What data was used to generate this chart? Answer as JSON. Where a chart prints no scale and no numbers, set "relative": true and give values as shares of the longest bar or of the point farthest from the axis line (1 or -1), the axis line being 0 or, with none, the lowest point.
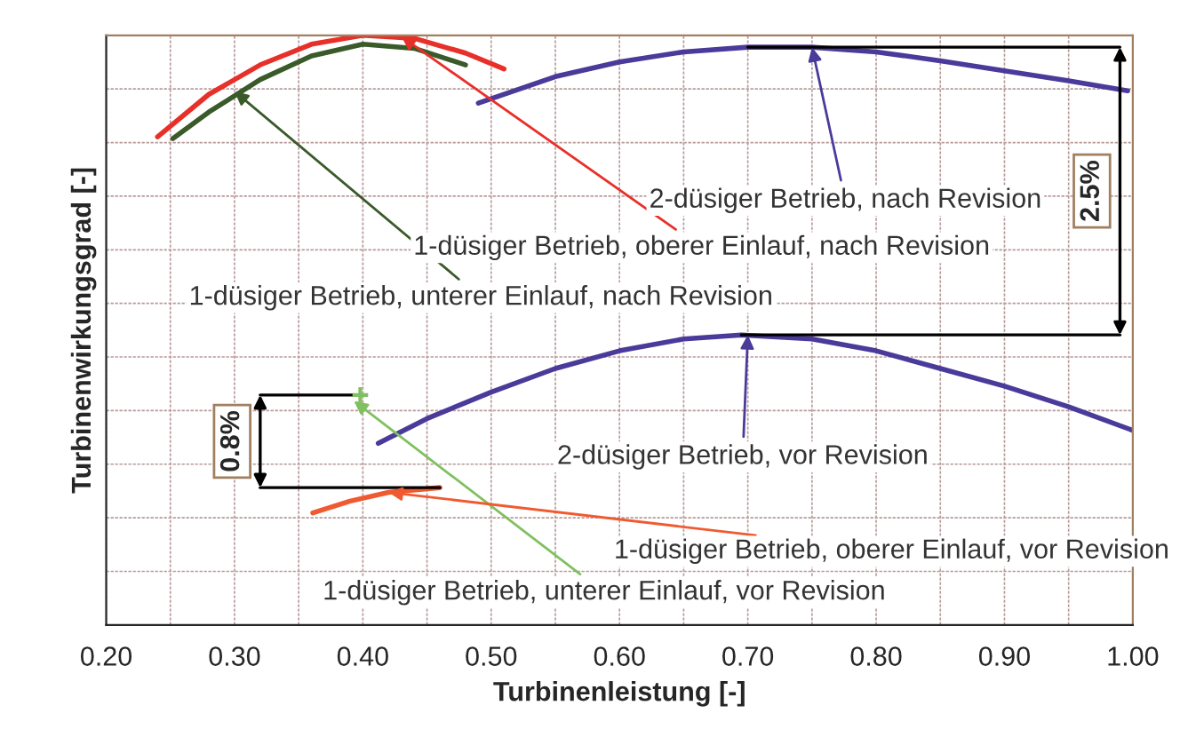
{
  "chart_data": {
    "type": "line",
    "relative": true,
    "xlabel": "Turbinenleistung [-]",
    "ylabel": "Turbinenwirkungsgrad [-]",
    "xlim": [
      0.2,
      1.0
    ],
    "xticks": [
      {
        "value": 0.2,
        "label": "0.20"
      },
      {
        "value": 0.25,
        "label": null
      },
      {
        "value": 0.3,
        "label": "0.30"
      },
      {
        "value": 0.35,
        "label": null
      },
      {
        "value": 0.4,
        "label": "0.40"
      },
      {
        "value": 0.45,
        "label": null
      },
      {
        "value": 0.5,
        "label": "0.50"
      },
      {
        "value": 0.55,
        "label": null
      },
      {
        "value": 0.6,
        "label": "0.60"
      },
      {
        "value": 0.65,
        "label": null
      },
      {
        "value": 0.7,
        "label": "0.70"
      },
      {
        "value": 0.75,
        "label": null
      },
      {
        "value": 0.8,
        "label": "0.80"
      },
      {
        "value": 0.85,
        "label": null
      },
      {
        "value": 0.9,
        "label": "0.90"
      },
      {
        "value": 0.95,
        "label": null
      },
      {
        "value": 1.0,
        "label": "1.00"
      }
    ],
    "grid": true,
    "tick_labels": "x",
    "line_style": "solid",
    "marker": "none",
    "series": [
      {
        "color": "#e8302a",
        "x": [
          0.24,
          0.28,
          0.32,
          0.36,
          0.4,
          0.44,
          0.48,
          0.51
        ],
        "values": [
          0.828,
          0.9,
          0.95,
          0.985,
          1.0,
          0.995,
          0.97,
          0.943
        ]
      },
      {
        "color": "#3a5a2a",
        "x": [
          0.252,
          0.28,
          0.32,
          0.36,
          0.4,
          0.44,
          0.48
        ],
        "values": [
          0.825,
          0.87,
          0.925,
          0.965,
          0.985,
          0.978,
          0.95
        ]
      },
      {
        "color": "#4a3a9a",
        "x": [
          0.49,
          0.55,
          0.6,
          0.65,
          0.7,
          0.75,
          0.8,
          0.85,
          0.9,
          0.95,
          0.996
        ],
        "values": [
          0.885,
          0.93,
          0.955,
          0.972,
          0.98,
          0.98,
          0.972,
          0.957,
          0.94,
          0.923,
          0.906
        ]
      },
      {
        "color": "#4a3a9a",
        "x": [
          0.412,
          0.45,
          0.5,
          0.55,
          0.6,
          0.65,
          0.695,
          0.75,
          0.8,
          0.85,
          0.9,
          0.95,
          1.0
        ],
        "values": [
          0.308,
          0.35,
          0.395,
          0.435,
          0.465,
          0.485,
          0.492,
          0.485,
          0.465,
          0.435,
          0.405,
          0.37,
          0.33
        ]
      },
      {
        "color": "#f05a30",
        "x": [
          0.361,
          0.39,
          0.42,
          0.46
        ],
        "values": [
          0.19,
          0.21,
          0.225,
          0.233
        ]
      },
      {
        "type": "scatter",
        "marker": "cross",
        "color": "#80c060",
        "x": [
          0.398
        ],
        "values": [
          0.39
        ]
      }
    ],
    "annotations": [
      {
        "text": "2-düsiger Betrieb, nach Revision",
        "x": 0.75,
        "y": 0.98
      },
      {
        "text": "1-düsiger Betrieb, oberer Einlauf, nach Revision",
        "x": 0.43,
        "y": 0.998
      },
      {
        "text": "1-düsiger Betrieb, unterer Einlauf, nach Revision",
        "x": 0.3,
        "y": 0.905
      },
      {
        "text": "2-düsiger Betrieb, vor Revision",
        "x": 0.7,
        "y": 0.492
      },
      {
        "text": "1-düsiger Betrieb, oberer Einlauf, vor Revision",
        "x": 0.42,
        "y": 0.225
      },
      {
        "text": "1-düsiger Betrieb, unterer Einlauf, vor Revision",
        "x": 0.393,
        "y": 0.38
      },
      "2.5%",
      "0.8%"
    ]
  }
}
